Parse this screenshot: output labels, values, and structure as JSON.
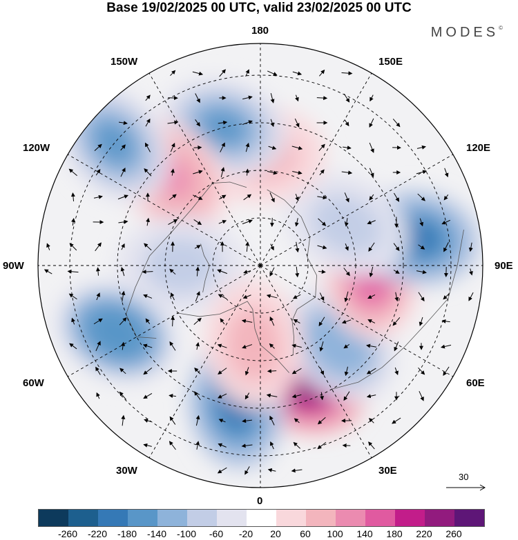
{
  "title": "Base 19/02/2025 00 UTC, valid 23/02/2025 00 UTC",
  "brand": "MODES",
  "brand_mark": "©",
  "longitude_labels": {
    "top": "180",
    "top_left": "150W",
    "top_right": "150E",
    "upper_left": "120W",
    "upper_right": "120E",
    "left": "90W",
    "right": "90E",
    "lower_left": "60W",
    "lower_right": "60E",
    "bottom_left": "30W",
    "bottom_right": "30E",
    "bottom": "0"
  },
  "vector_scale": "30",
  "colorbar": {
    "colors": [
      "#0d3a5c",
      "#1d5f8e",
      "#3579b6",
      "#5996c8",
      "#8eb3da",
      "#c2cde6",
      "#e3e3ef",
      "#ffffff",
      "#f9d8dc",
      "#f3b5bd",
      "#eb8bb0",
      "#e05aa0",
      "#c21d8a",
      "#921b7e",
      "#5e1677"
    ],
    "tick_labels": [
      "-260",
      "-220",
      "-180",
      "-140",
      "-100",
      "-60",
      "-20",
      "20",
      "60",
      "100",
      "140",
      "180",
      "220",
      "260"
    ]
  },
  "chart_data": {
    "type": "heatmap",
    "projection": "north polar stereographic",
    "field": "anomaly with wind vectors",
    "levels": [
      -260,
      -220,
      -180,
      -140,
      -100,
      -60,
      -20,
      20,
      60,
      100,
      140,
      180,
      220,
      260
    ],
    "anomaly_centers": [
      {
        "lon": 20,
        "lat": 50,
        "value": 230
      },
      {
        "lon": 350,
        "lat": 45,
        "value": -180
      },
      {
        "lon": 45,
        "lat": 55,
        "value": -120
      },
      {
        "lon": 85,
        "lat": 55,
        "value": 160
      },
      {
        "lon": 100,
        "lat": 40,
        "value": -200
      },
      {
        "lon": 115,
        "lat": 60,
        "value": -80
      },
      {
        "lon": 180,
        "lat": 55,
        "value": 80
      },
      {
        "lon": 195,
        "lat": 45,
        "value": -160
      },
      {
        "lon": 225,
        "lat": 50,
        "value": 110
      },
      {
        "lon": 230,
        "lat": 30,
        "value": -140
      },
      {
        "lon": 270,
        "lat": 65,
        "value": -90
      },
      {
        "lon": 295,
        "lat": 40,
        "value": -170
      },
      {
        "lon": 355,
        "lat": 65,
        "value": 90
      }
    ],
    "vector_reference": 30
  }
}
